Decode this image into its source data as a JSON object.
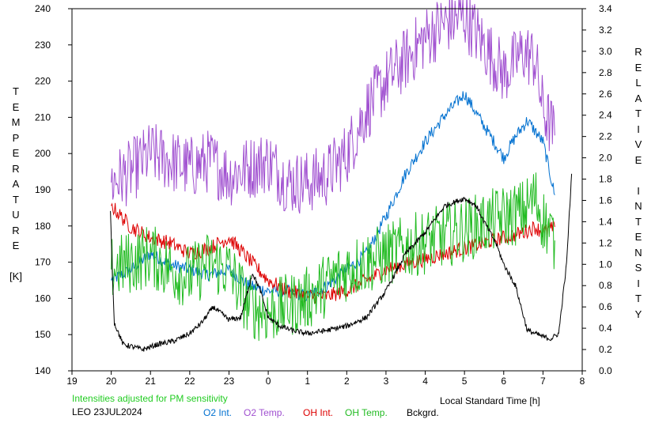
{
  "chart_data": {
    "type": "line",
    "xlabel": "Local Standard Time [h]",
    "ylabel_left_letters": [
      "T",
      "E",
      "M",
      "P",
      "E",
      "R",
      "A",
      "T",
      "U",
      "R",
      "E",
      "",
      "[K]"
    ],
    "ylabel_right_letters": [
      "R",
      "E",
      "L",
      "A",
      "T",
      "I",
      "V",
      "E",
      "",
      "I",
      "N",
      "T",
      "E",
      "N",
      "S",
      "I",
      "T",
      "Y"
    ],
    "x_tick_labels": [
      "19",
      "20",
      "21",
      "22",
      "23",
      "0",
      "1",
      "2",
      "3",
      "4",
      "5",
      "6",
      "7",
      "8"
    ],
    "y_left_ticks": [
      "240",
      "230",
      "220",
      "210",
      "200",
      "190",
      "180",
      "170",
      "160",
      "150",
      "140"
    ],
    "y_right_ticks": [
      "3.4",
      "3.2",
      "3.0",
      "2.8",
      "2.6",
      "2.4",
      "2.2",
      "2.0",
      "1.8",
      "1.6",
      "1.4",
      "1.2",
      "1.0",
      "0.8",
      "0.6",
      "0.4",
      "0.2",
      "0.0"
    ],
    "xlim": [
      19,
      32
    ],
    "ylim_left": [
      140,
      240
    ],
    "ylim_right": [
      0,
      3.4
    ],
    "note": "Intensities adjusted for PM sensitivity",
    "station_date": "LEO 23JUL2024",
    "series": [
      {
        "name": "O2 Int.",
        "color": "#0070d0",
        "axis": "right",
        "x": [
          20.0,
          20.5,
          21.0,
          21.5,
          22.0,
          22.5,
          23.0,
          23.5,
          24.0,
          24.5,
          25.0,
          25.5,
          26.0,
          26.5,
          27.0,
          27.5,
          28.0,
          28.5,
          29.0,
          29.5,
          30.0,
          30.3,
          30.6,
          31.0,
          31.3
        ],
        "y": [
          0.85,
          0.95,
          1.1,
          1.0,
          0.95,
          0.9,
          0.95,
          0.8,
          0.75,
          0.75,
          0.7,
          0.8,
          0.95,
          1.1,
          1.45,
          1.85,
          2.15,
          2.4,
          2.6,
          2.3,
          2.0,
          2.2,
          2.35,
          2.15,
          1.65
        ]
      },
      {
        "name": "O2 Temp.",
        "color": "#a050d0",
        "axis": "left",
        "x": [
          20.0,
          20.5,
          21.0,
          21.5,
          22.0,
          22.5,
          23.0,
          24.0,
          24.5,
          25.0,
          25.5,
          26.0,
          26.5,
          27.0,
          27.5,
          28.0,
          28.5,
          29.0,
          29.5,
          30.0,
          30.5,
          30.8,
          31.0,
          31.3
        ],
        "y": [
          192,
          195,
          200,
          198,
          196,
          198,
          194,
          198,
          192,
          192,
          194,
          200,
          212,
          220,
          226,
          232,
          236,
          238,
          230,
          222,
          228,
          226,
          212,
          205
        ]
      },
      {
        "name": "OH Int.",
        "color": "#dd0000",
        "axis": "right",
        "x": [
          20.0,
          20.5,
          21.0,
          21.5,
          22.0,
          22.5,
          23.0,
          23.5,
          24.0,
          24.5,
          25.0,
          25.5,
          26.0,
          26.5,
          27.0,
          27.5,
          30.5,
          30.8,
          31.0,
          31.3
        ],
        "y": [
          1.55,
          1.35,
          1.25,
          1.2,
          1.1,
          1.15,
          1.25,
          1.05,
          0.85,
          0.75,
          0.7,
          0.7,
          0.75,
          0.85,
          0.95,
          1.0,
          1.3,
          1.35,
          1.3,
          1.35
        ]
      },
      {
        "name": "OH Temp.",
        "color": "#22bb22",
        "axis": "left",
        "x": [
          20.0,
          20.5,
          21.0,
          21.5,
          22.0,
          22.5,
          23.0,
          23.5,
          24.0,
          24.5,
          25.0,
          25.5,
          26.0,
          26.5,
          27.0,
          27.5,
          30.5,
          30.8,
          31.0,
          31.3
        ],
        "y": [
          168,
          170,
          172,
          168,
          166,
          170,
          168,
          158,
          156,
          158,
          160,
          164,
          168,
          170,
          172,
          174,
          184,
          188,
          182,
          176
        ]
      },
      {
        "name": "Bckgrd.",
        "color": "#000000",
        "axis": "right",
        "x": [
          19.98,
          20.03,
          20.08,
          20.3,
          20.8,
          21.2,
          21.6,
          22.0,
          22.3,
          22.6,
          23.0,
          23.3,
          23.6,
          23.8,
          24.0,
          24.3,
          24.6,
          25.0,
          25.5,
          26.0,
          26.5,
          27.0,
          27.5,
          28.0,
          28.5,
          29.0,
          29.3,
          29.5,
          29.8,
          30.0,
          30.3,
          30.6,
          30.8,
          31.0,
          31.2,
          31.4,
          31.6,
          31.73
        ],
        "y": [
          1.5,
          0.9,
          0.45,
          0.25,
          0.2,
          0.25,
          0.28,
          0.35,
          0.45,
          0.6,
          0.48,
          0.5,
          0.92,
          0.75,
          0.5,
          0.42,
          0.38,
          0.35,
          0.38,
          0.42,
          0.5,
          0.75,
          1.1,
          1.3,
          1.55,
          1.62,
          1.55,
          1.4,
          1.2,
          1.0,
          0.8,
          0.38,
          0.35,
          0.32,
          0.3,
          0.35,
          1.0,
          1.85
        ]
      }
    ]
  },
  "legend": {
    "o2_int": "O2 Int.",
    "o2_temp": "O2 Temp.",
    "oh_int": "OH Int.",
    "oh_temp": "OH Temp.",
    "bckgrd": "Bckgrd."
  },
  "colors": {
    "o2_int": "#0070d0",
    "o2_temp": "#a050d0",
    "oh_int": "#dd0000",
    "oh_temp": "#22bb22",
    "bckgrd": "#000000",
    "note": "#22cc22"
  }
}
